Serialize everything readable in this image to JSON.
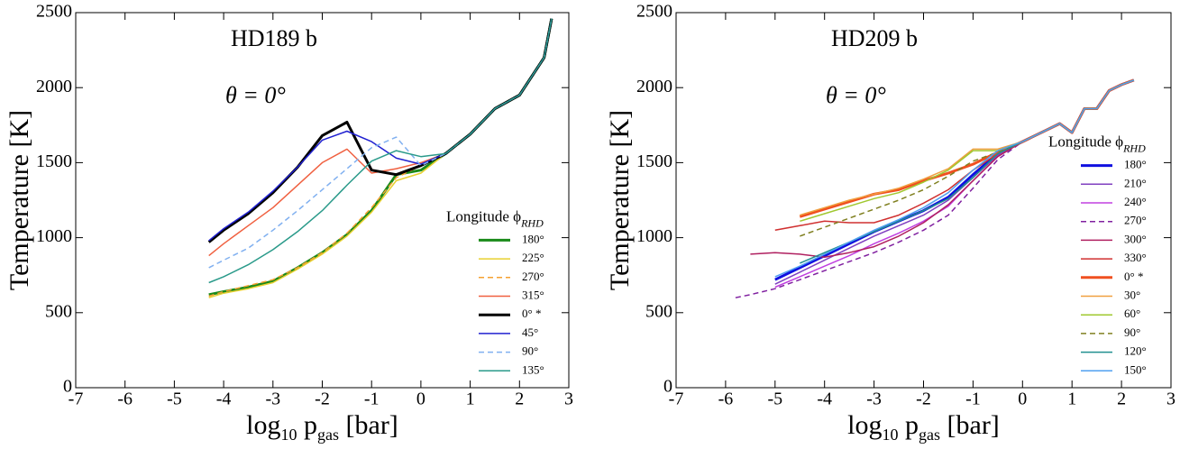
{
  "chart_data": [
    {
      "type": "line",
      "title": "HD189 b",
      "annotation": "θ = 0°",
      "xlabel": [
        "log",
        "10",
        " p",
        "gas",
        " [bar]"
      ],
      "ylabel": "Temperature [K]",
      "legend_title": [
        "Longitude ϕ",
        "RHD"
      ],
      "legend": "lower right",
      "xlim": [
        -7,
        3
      ],
      "ylim": [
        0,
        2500
      ],
      "xticks": [
        -7,
        -6,
        -5,
        -4,
        -3,
        -2,
        -1,
        0,
        1,
        2,
        3
      ],
      "yticks": [
        0,
        500,
        1000,
        1500,
        2000,
        2500
      ],
      "x": [
        -4.3,
        -4,
        -3.5,
        -3,
        -2.5,
        -2,
        -1.5,
        -1,
        -0.5,
        0,
        0.5,
        1,
        1.5,
        2,
        2.5,
        2.65
      ],
      "series": [
        {
          "name": "180°",
          "color": "#1a8a1a",
          "width": 3,
          "values": [
            620,
            640,
            670,
            710,
            800,
            900,
            1020,
            1180,
            1420,
            1450,
            1560,
            1690,
            1860,
            1950,
            2200,
            2460
          ]
        },
        {
          "name": "225°",
          "color": "#e8d030",
          "values": [
            600,
            630,
            660,
            700,
            790,
            890,
            1010,
            1170,
            1380,
            1430,
            1560,
            1690,
            1860,
            1950,
            2200,
            2460
          ]
        },
        {
          "name": "270°",
          "color": "#f5a030",
          "dash": true,
          "values": [
            610,
            640,
            680,
            720,
            800,
            900,
            1030,
            1200,
            1400,
            1480,
            1560,
            1690,
            1860,
            1950,
            2200,
            2460
          ]
        },
        {
          "name": "315°",
          "color": "#f06040",
          "values": [
            880,
            960,
            1080,
            1200,
            1350,
            1500,
            1590,
            1430,
            1460,
            1500,
            1560,
            1690,
            1860,
            1950,
            2200,
            2460
          ]
        },
        {
          "name": "0° *",
          "color": "#000000",
          "width": 3,
          "values": [
            970,
            1050,
            1160,
            1300,
            1470,
            1680,
            1770,
            1450,
            1420,
            1480,
            1560,
            1690,
            1860,
            1950,
            2200,
            2460
          ]
        },
        {
          "name": "45°",
          "color": "#2020d0",
          "values": [
            980,
            1060,
            1170,
            1310,
            1470,
            1650,
            1710,
            1640,
            1530,
            1490,
            1560,
            1690,
            1860,
            1950,
            2200,
            2460
          ]
        },
        {
          "name": "90°",
          "color": "#80b0f0",
          "dash": true,
          "values": [
            800,
            850,
            930,
            1050,
            1180,
            1320,
            1460,
            1600,
            1670,
            1480,
            1560,
            1690,
            1860,
            1950,
            2200,
            2460
          ]
        },
        {
          "name": "135°",
          "color": "#2a9a8a",
          "values": [
            700,
            740,
            820,
            920,
            1040,
            1180,
            1350,
            1510,
            1580,
            1540,
            1560,
            1690,
            1860,
            1950,
            2200,
            2460
          ]
        }
      ]
    },
    {
      "type": "line",
      "title": "HD209 b",
      "annotation": "θ = 0°",
      "xlabel": [
        "log",
        "10",
        " p",
        "gas",
        " [bar]"
      ],
      "ylabel": "Temperature [K]",
      "legend_title": [
        "Longitude ϕ",
        "RHD"
      ],
      "legend": "lower right",
      "xlim": [
        -7,
        3
      ],
      "ylim": [
        0,
        2500
      ],
      "xticks": [
        -7,
        -6,
        -5,
        -4,
        -3,
        -2,
        -1,
        0,
        1,
        2,
        3
      ],
      "yticks": [
        0,
        500,
        1000,
        1500,
        2000,
        2500
      ],
      "x": [
        -5.8,
        -5.5,
        -5,
        -4.5,
        -4,
        -3.5,
        -3,
        -2.5,
        -2,
        -1.5,
        -1,
        -0.5,
        0,
        0.5,
        0.75,
        1,
        1.25,
        1.5,
        1.75,
        2,
        2.25
      ],
      "series": [
        {
          "name": "180°",
          "color": "#1010e0",
          "width": 3,
          "values": [
            null,
            null,
            720,
            800,
            880,
            960,
            1040,
            1110,
            1180,
            1270,
            1420,
            1560,
            1640,
            1720,
            1760,
            1700,
            1860,
            1860,
            1980,
            2020,
            2050
          ]
        },
        {
          "name": "210°",
          "color": "#8040c0",
          "values": [
            null,
            null,
            690,
            770,
            850,
            930,
            1010,
            1080,
            1150,
            1250,
            1400,
            1550,
            1640,
            1720,
            1760,
            1700,
            1860,
            1860,
            1980,
            2020,
            2050
          ]
        },
        {
          "name": "240°",
          "color": "#c040e0",
          "values": [
            null,
            null,
            670,
            740,
            810,
            880,
            960,
            1030,
            1110,
            1210,
            1380,
            1540,
            1640,
            1720,
            1760,
            1700,
            1860,
            1860,
            1980,
            2020,
            2050
          ]
        },
        {
          "name": "270°",
          "color": "#8020a0",
          "dash": true,
          "values": [
            600,
            620,
            660,
            720,
            780,
            840,
            900,
            970,
            1050,
            1150,
            1330,
            1520,
            1640,
            1720,
            1760,
            1700,
            1860,
            1860,
            1980,
            2020,
            2050
          ]
        },
        {
          "name": "300°",
          "color": "#b02060",
          "values": [
            null,
            890,
            900,
            890,
            870,
            900,
            940,
            1010,
            1100,
            1220,
            1380,
            1540,
            1640,
            1720,
            1760,
            1700,
            1860,
            1860,
            1980,
            2020,
            2050
          ]
        },
        {
          "name": "330°",
          "color": "#d03030",
          "values": [
            null,
            null,
            1050,
            1080,
            1110,
            1100,
            1100,
            1150,
            1230,
            1320,
            1450,
            1560,
            1640,
            1720,
            1760,
            1700,
            1860,
            1860,
            1980,
            2020,
            2050
          ]
        },
        {
          "name": "0° *",
          "color": "#f05020",
          "width": 3,
          "values": [
            null,
            null,
            null,
            1140,
            1190,
            1240,
            1290,
            1320,
            1380,
            1430,
            1490,
            1570,
            1640,
            1720,
            1760,
            1700,
            1860,
            1860,
            1980,
            2020,
            2050
          ]
        },
        {
          "name": "30°",
          "color": "#f0a040",
          "values": [
            null,
            null,
            null,
            1150,
            1200,
            1250,
            1290,
            1330,
            1390,
            1460,
            1590,
            1590,
            1640,
            1720,
            1760,
            1700,
            1860,
            1860,
            1980,
            2020,
            2050
          ]
        },
        {
          "name": "60°",
          "color": "#a0c830",
          "values": [
            null,
            null,
            null,
            1110,
            1160,
            1210,
            1260,
            1300,
            1370,
            1450,
            1580,
            1580,
            1640,
            1720,
            1760,
            1700,
            1860,
            1860,
            1980,
            2020,
            2050
          ]
        },
        {
          "name": "90°",
          "color": "#808020",
          "dash": true,
          "values": [
            null,
            null,
            null,
            1010,
            1070,
            1130,
            1190,
            1250,
            1320,
            1410,
            1510,
            1570,
            1640,
            1720,
            1760,
            1700,
            1860,
            1860,
            1980,
            2020,
            2050
          ]
        },
        {
          "name": "120°",
          "color": "#209090",
          "values": [
            null,
            null,
            null,
            830,
            900,
            970,
            1040,
            1110,
            1180,
            1260,
            1400,
            1560,
            1640,
            1720,
            1760,
            1700,
            1860,
            1860,
            1980,
            2020,
            2050
          ]
        },
        {
          "name": "150°",
          "color": "#50a0f0",
          "values": [
            null,
            null,
            740,
            810,
            890,
            970,
            1050,
            1120,
            1200,
            1300,
            1450,
            1580,
            1640,
            1720,
            1760,
            1700,
            1860,
            1860,
            1980,
            2020,
            2050
          ]
        }
      ]
    }
  ]
}
